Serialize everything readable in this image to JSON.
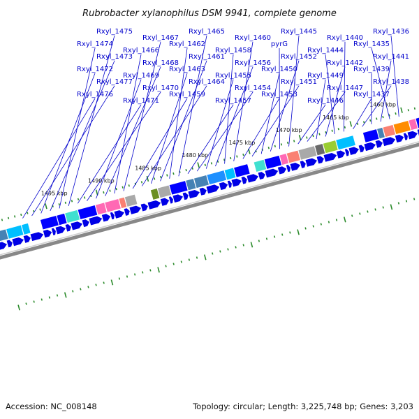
{
  "title": "Rubrobacter xylanophilus DSM 9941, complete genome",
  "footer": {
    "accession": "Accession: NC_008148",
    "summary": "Topology: circular; Length: 3,225,748 bp; Genes: 3,203"
  },
  "colors": {
    "forward_strand": "#0000e6",
    "line": "#0000cc",
    "backbone": "#888888",
    "tick": "#2a8a2a",
    "cog_palette": [
      "#1e90ff",
      "#00bfff",
      "#4682b4",
      "#ff69b4",
      "#fa8072",
      "#6b8e23",
      "#9acd32",
      "#ff8c00",
      "#a9a9a9",
      "#696969",
      "#9370db",
      "#40e0d0",
      "#ff1493",
      "#0000ff"
    ]
  },
  "ticks": [
    "1460 kbp",
    "1465 kbp",
    "1470 kbp",
    "1475 kbp",
    "1480 kbp",
    "1485 kbp",
    "1490 kbp",
    "1495 kbp"
  ],
  "genes": [
    "Rxyl_1436",
    "Rxyl_1435",
    "Rxyl_1441",
    "Rxyl_1439",
    "Rxyl_1438",
    "Rxyl_1437",
    "Rxyl_1440",
    "Rxyl_1444",
    "Rxyl_1442",
    "Rxyl_1449",
    "Rxyl_1447",
    "Rxyl_1446",
    "Rxyl_1445",
    "pyrG",
    "Rxyl_1452",
    "Rxyl_1450",
    "Rxyl_1451",
    "Rxyl_1453",
    "Rxyl_1460",
    "Rxyl_1458",
    "Rxyl_1456",
    "Rxyl_1455",
    "Rxyl_1454",
    "Rxyl_1457",
    "Rxyl_1465",
    "Rxyl_1462",
    "Rxyl_1461",
    "Rxyl_1463",
    "Rxyl_1464",
    "Rxyl_1459",
    "Rxyl_1467",
    "Rxyl_1466",
    "Rxyl_1468",
    "Rxyl_1469",
    "Rxyl_1470",
    "Rxyl_1471",
    "Rxyl_1475",
    "Rxyl_1474",
    "Rxyl_1473",
    "Rxyl_1472",
    "Rxyl_1477",
    "Rxyl_1476"
  ]
}
